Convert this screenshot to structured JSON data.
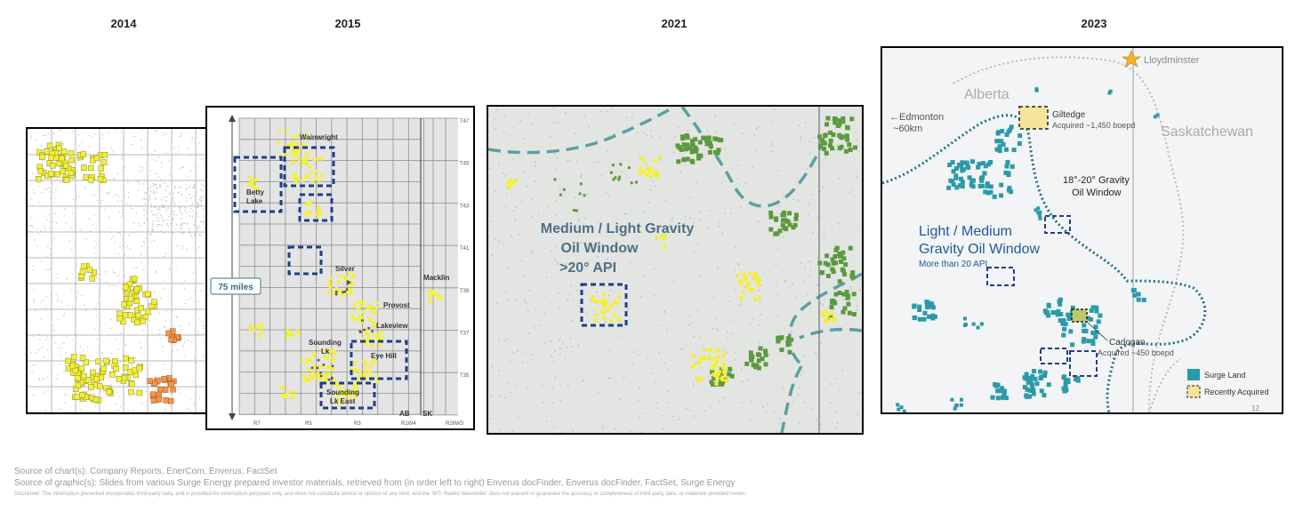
{
  "years": [
    "2014",
    "2015",
    "2021",
    "2023"
  ],
  "panel_2015": {
    "labels": {
      "wainwright": "Wainwright",
      "betty_lake": "Betty\nLake",
      "silver": "Silver",
      "provost": "Provost",
      "macklin": "Macklin",
      "lakeview": "Lakeview",
      "sounding_lk": "Sounding\nLk",
      "eye_hill": "Eye Hill",
      "sounding_lk_east": "Sounding\nLk East",
      "scale": "75 miles"
    },
    "townships": [
      "T47",
      "T45",
      "T43",
      "T41",
      "T39",
      "T37",
      "T35"
    ],
    "ranges": [
      "R7",
      "R5",
      "R3",
      "R1W4",
      "R26W3"
    ],
    "provinces": [
      "AB",
      "SK"
    ]
  },
  "panel_2021": {
    "window_label_1": "Medium / Light Gravity",
    "window_label_2": "Oil Window",
    "window_label_3": ">20° API"
  },
  "panel_2023": {
    "lloydminster": "Lloydminster",
    "alberta": "Alberta",
    "saskatchewan": "Saskatchewan",
    "edmonton_1": "←Edmonton",
    "edmonton_2": "~60km",
    "giltedge_name": "Giltedge",
    "giltedge_acq": "Acquired ~1,450 boepd",
    "gravity_window_1": "18°-20° Gravity",
    "gravity_window_2": "Oil Window",
    "light_medium_1": "Light / Medium",
    "light_medium_2": "Gravity Oil Window",
    "more_than": "More than 20 API",
    "cadogan_name": "Cadogan",
    "cadogan_acq": "Acquired ~450 boepd",
    "legend_surge": "Surge Land",
    "legend_recent": "Recently Acquired",
    "page_number": "12",
    "colors": {
      "surge_land": "#2a9aa8",
      "recently_acquired": "#f4e39a",
      "window_line": "#1d6f86"
    }
  },
  "footer": {
    "source_charts": "Source of chart(s): Company Reports, EnerCom, Enverus, FactSet",
    "source_graphics": "Source of graphic(s): Slides from various Surge Energy prepared investor materials, retrieved from (in order left to right) Enverus docFinder, Enverus docFinder, FactSet, Surge Energy",
    "disclaimer": "Disclaimer: The information presented incorporates third-party data, and is provided for information purposes only, and does not constitute advice or opinion of any kind, and the 'WTI Realist Newsletter' does not warrant or guarantee the accuracy or completeness of third-party data, or materials provided herein."
  }
}
